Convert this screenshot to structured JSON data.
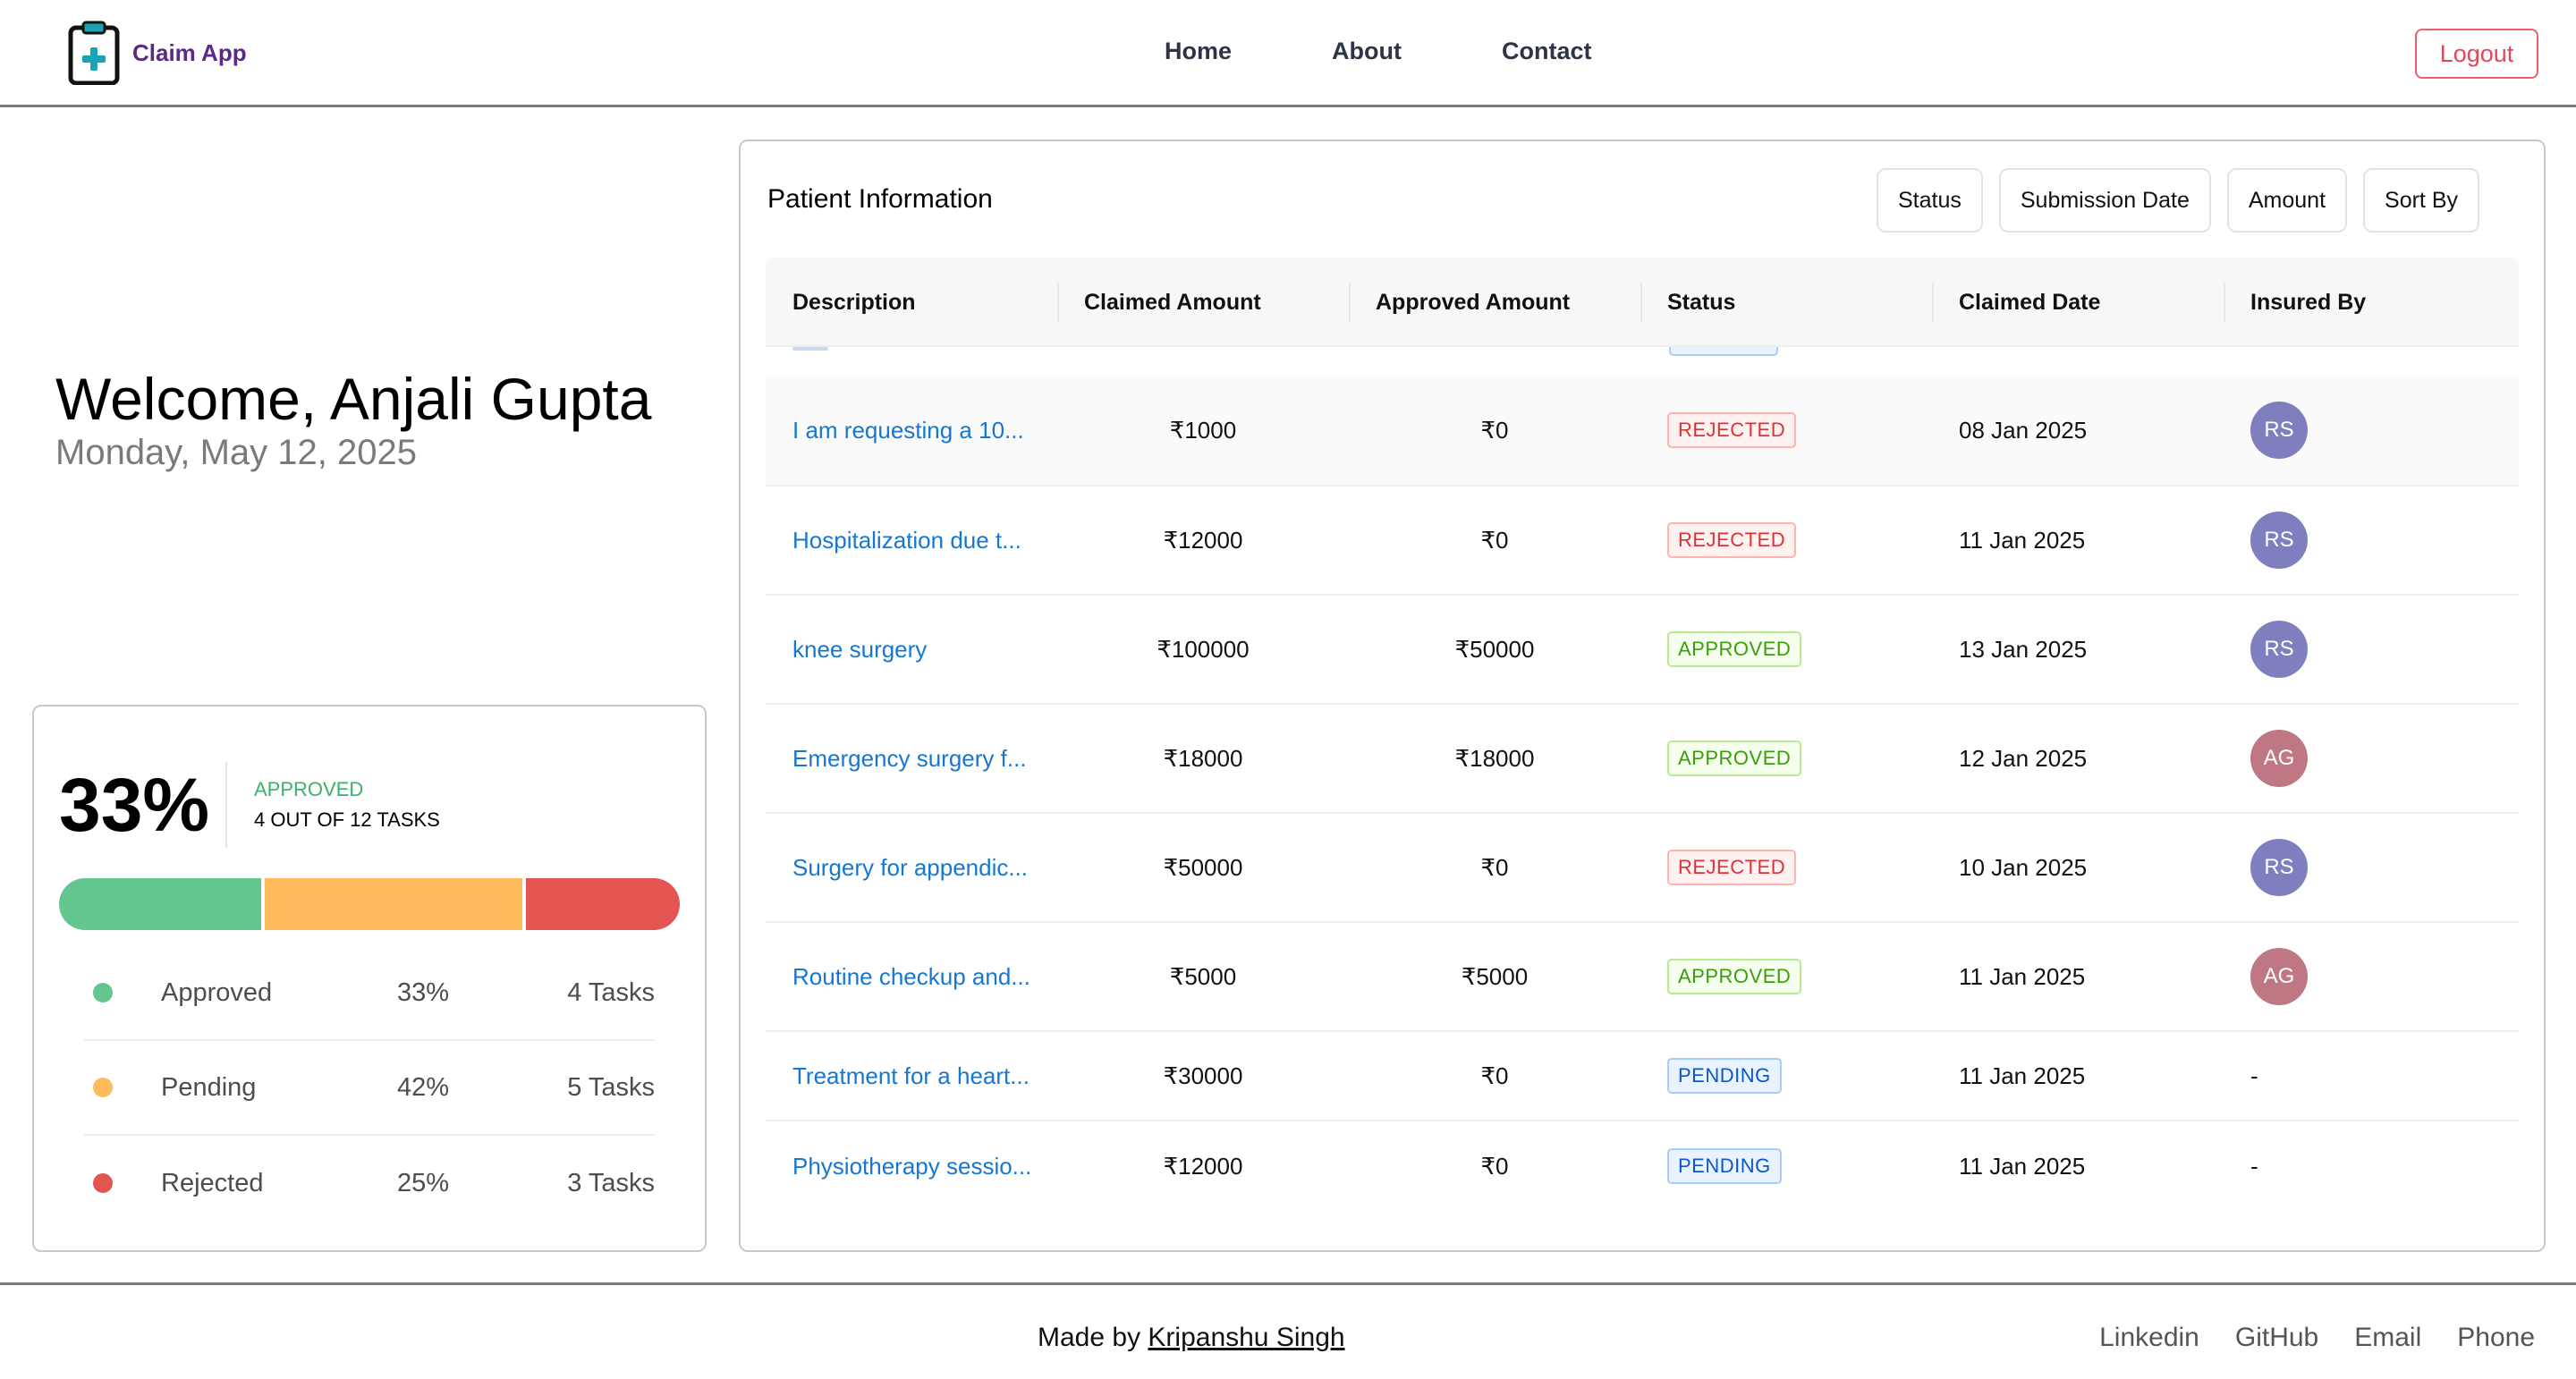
{
  "app": {
    "brand": "Claim App",
    "nav": [
      "Home",
      "About",
      "Contact"
    ],
    "logout": "Logout"
  },
  "welcome": {
    "greeting": "Welcome, Anjali Gupta",
    "date": "Monday, May 12, 2025"
  },
  "stats": {
    "percent": "33%",
    "label": "APPROVED",
    "subtitle": "4 OUT OF 12 TASKS",
    "segments": [
      {
        "name": "Approved",
        "fraction": 0.33,
        "color": "#63c68f"
      },
      {
        "name": "Pending",
        "fraction": 0.42,
        "color": "#ffba5c"
      },
      {
        "name": "Rejected",
        "fraction": 0.25,
        "color": "#e45552"
      }
    ],
    "legend": [
      {
        "label": "Approved",
        "pct": "33%",
        "count": "4 Tasks",
        "color": "#63c68f"
      },
      {
        "label": "Pending",
        "pct": "42%",
        "count": "5 Tasks",
        "color": "#ffba5c"
      },
      {
        "label": "Rejected",
        "pct": "25%",
        "count": "3 Tasks",
        "color": "#e45552"
      }
    ]
  },
  "table": {
    "title": "Patient Information",
    "filters": [
      "Status",
      "Submission Date",
      "Amount",
      "Sort By"
    ],
    "columns": [
      "Description",
      "Claimed Amount",
      "Approved Amount",
      "Status",
      "Claimed Date",
      "Insured By"
    ],
    "rows": [
      {
        "description": "I am requesting a 10...",
        "claimed": "₹1000",
        "approved": "₹0",
        "status": "REJECTED",
        "date": "08 Jan 2025",
        "insured": "RS"
      },
      {
        "description": "Hospitalization due t...",
        "claimed": "₹12000",
        "approved": "₹0",
        "status": "REJECTED",
        "date": "11 Jan 2025",
        "insured": "RS"
      },
      {
        "description": "knee surgery",
        "claimed": "₹100000",
        "approved": "₹50000",
        "status": "APPROVED",
        "date": "13 Jan 2025",
        "insured": "RS"
      },
      {
        "description": "Emergency surgery f...",
        "claimed": "₹18000",
        "approved": "₹18000",
        "status": "APPROVED",
        "date": "12 Jan 2025",
        "insured": "AG"
      },
      {
        "description": "Surgery for appendic...",
        "claimed": "₹50000",
        "approved": "₹0",
        "status": "REJECTED",
        "date": "10 Jan 2025",
        "insured": "RS"
      },
      {
        "description": "Routine checkup and...",
        "claimed": "₹5000",
        "approved": "₹5000",
        "status": "APPROVED",
        "date": "11 Jan 2025",
        "insured": "AG"
      },
      {
        "description": "Treatment for a heart...",
        "claimed": "₹30000",
        "approved": "₹0",
        "status": "PENDING",
        "date": "11 Jan 2025",
        "insured": "-"
      },
      {
        "description": "Physiotherapy sessio...",
        "claimed": "₹12000",
        "approved": "₹0",
        "status": "PENDING",
        "date": "11 Jan 2025",
        "insured": "-"
      }
    ]
  },
  "avatar_colors": {
    "RS": "#7f7fbf",
    "AG": "#c07784"
  },
  "footer": {
    "made_by_prefix": "Made by ",
    "author": "Kripanshu Singh",
    "links": [
      "Linkedin",
      "GitHub",
      "Email",
      "Phone"
    ]
  }
}
